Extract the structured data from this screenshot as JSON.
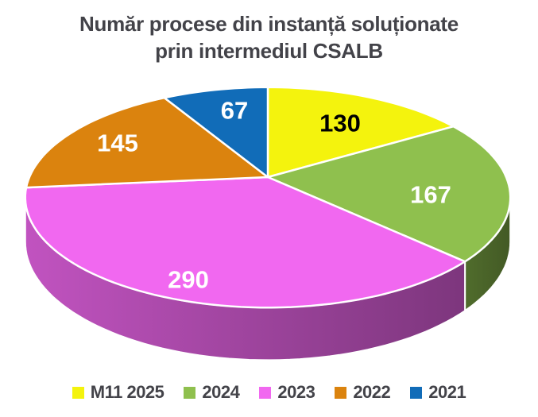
{
  "title": {
    "line1": "Număr procese din instanță soluționate",
    "line2": "prin intermediul CSALB"
  },
  "chart_data": {
    "type": "pie",
    "style": "3d-perspective",
    "start_angle_deg": 0,
    "direction": "clockwise",
    "legend_position": "bottom",
    "labels": [
      "M11 2025",
      "2024",
      "2023",
      "2022",
      "2021"
    ],
    "values": [
      130,
      167,
      290,
      145,
      67
    ],
    "colors": [
      "#F4F30D",
      "#8FC04E",
      "#F168F0",
      "#DB830E",
      "#116CB8"
    ],
    "label_text_colors": [
      "#000000",
      "#FFFFFF",
      "#FFFFFF",
      "#FFFFFF",
      "#FFFFFF"
    ],
    "title_color": "#434349",
    "background_color": "#FFFFFF"
  }
}
